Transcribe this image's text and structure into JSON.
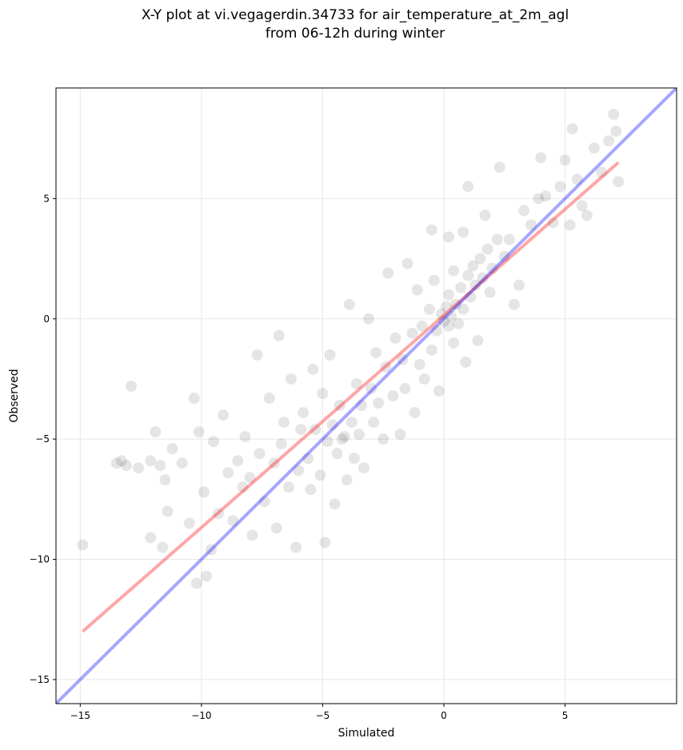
{
  "chart_data": {
    "type": "scatter",
    "title": "X-Y plot at vi.vegagerdin.34733 for air_temperature_at_2m_agl",
    "subtitle": "from 06-12h during winter",
    "x_label": "Simulated",
    "y_label": "Observed",
    "xlim": [
      -16,
      9.6
    ],
    "ylim": [
      -16,
      9.6
    ],
    "xticks": [
      {
        "value": -15,
        "label": "−15"
      },
      {
        "value": -10,
        "label": "−10"
      },
      {
        "value": -5,
        "label": "−5"
      },
      0,
      5
    ],
    "yticks": [
      {
        "value": -15,
        "label": "−15"
      },
      {
        "value": -10,
        "label": "−10"
      },
      {
        "value": -5,
        "label": "−5"
      },
      0,
      5
    ],
    "grid": true,
    "series": [
      {
        "mode": "markers",
        "color": "#000000",
        "alpha": 0.1,
        "x": [
          -14.9,
          -13.5,
          -13.3,
          -13.1,
          -12.9,
          -12.6,
          -12.1,
          -11.9,
          -11.7,
          -11.5,
          -12.1,
          -11.6,
          -11.4,
          -11.2,
          -10.8,
          -10.5,
          -10.3,
          -10.1,
          -10.2,
          -9.9,
          -9.8,
          -9.6,
          -9.5,
          -9.3,
          -9.1,
          -8.9,
          -8.7,
          -8.5,
          -8.3,
          -8.2,
          -8.0,
          -7.9,
          -7.7,
          -7.6,
          -7.4,
          -7.2,
          -7.0,
          -6.9,
          -6.8,
          -6.7,
          -6.6,
          -6.4,
          -6.3,
          -6.1,
          -6.0,
          -5.9,
          -5.8,
          -5.6,
          -5.5,
          -5.4,
          -5.3,
          -5.1,
          -5.0,
          -4.9,
          -4.8,
          -4.7,
          -4.6,
          -4.5,
          -4.4,
          -4.3,
          -4.2,
          -4.1,
          -4.0,
          -3.9,
          -3.8,
          -3.7,
          -3.6,
          -3.5,
          -3.4,
          -3.3,
          -3.1,
          -3.0,
          -2.9,
          -2.8,
          -2.7,
          -2.5,
          -2.4,
          -2.3,
          -2.1,
          -2.0,
          -1.8,
          -1.7,
          -1.6,
          -1.5,
          -1.3,
          -1.2,
          -1.1,
          -1.0,
          -0.9,
          -0.8,
          -0.6,
          -0.5,
          -0.4,
          -0.3,
          -0.2,
          -0.1,
          0.0,
          0.1,
          0.2,
          0.2,
          0.3,
          0.4,
          0.4,
          0.5,
          0.6,
          0.7,
          0.8,
          0.8,
          0.9,
          1.0,
          1.1,
          1.2,
          1.3,
          1.4,
          1.5,
          1.6,
          1.7,
          1.8,
          1.9,
          2.0,
          2.2,
          2.3,
          2.5,
          2.7,
          2.9,
          3.1,
          3.3,
          3.6,
          4.0,
          4.2,
          4.5,
          4.8,
          5.0,
          5.2,
          5.5,
          5.7,
          5.9,
          6.2,
          6.5,
          6.8,
          7.0,
          7.1,
          7.2,
          5.3,
          3.9,
          0.2,
          -0.5,
          1.0
        ],
        "values": [
          -9.4,
          -6.0,
          -5.9,
          -6.1,
          -2.8,
          -6.2,
          -5.9,
          -4.7,
          -6.1,
          -6.7,
          -9.1,
          -9.5,
          -8.0,
          -5.4,
          -6.0,
          -8.5,
          -3.3,
          -4.7,
          -11.0,
          -7.2,
          -10.7,
          -9.6,
          -5.1,
          -8.1,
          -4.0,
          -6.4,
          -8.4,
          -5.9,
          -7.0,
          -4.9,
          -6.6,
          -9.0,
          -1.5,
          -5.6,
          -7.6,
          -3.3,
          -6.0,
          -8.7,
          -0.7,
          -5.2,
          -4.3,
          -7.0,
          -2.5,
          -9.5,
          -6.3,
          -4.6,
          -3.9,
          -5.8,
          -7.1,
          -2.1,
          -4.6,
          -6.5,
          -3.1,
          -9.3,
          -5.1,
          -1.5,
          -4.4,
          -7.7,
          -5.6,
          -3.6,
          -5.0,
          -4.9,
          -6.7,
          0.6,
          -4.3,
          -5.8,
          -2.7,
          -4.8,
          -3.6,
          -6.2,
          0.0,
          -2.9,
          -4.3,
          -1.4,
          -3.5,
          -5.0,
          -2.0,
          1.9,
          -3.2,
          -0.8,
          -4.8,
          -1.7,
          -2.9,
          2.3,
          -0.6,
          -3.9,
          1.2,
          -1.9,
          -0.3,
          -2.5,
          0.4,
          -1.3,
          1.6,
          -0.5,
          -3.0,
          0.2,
          -0.1,
          0.5,
          -0.3,
          1.0,
          0.1,
          -1.0,
          2.0,
          0.6,
          -0.2,
          1.3,
          3.6,
          0.4,
          -1.8,
          1.8,
          0.9,
          2.2,
          1.4,
          -0.9,
          2.5,
          1.7,
          4.3,
          2.9,
          1.1,
          2.1,
          3.3,
          6.3,
          2.6,
          3.3,
          0.6,
          1.4,
          4.5,
          3.9,
          6.7,
          5.1,
          4.0,
          5.5,
          6.6,
          3.9,
          5.8,
          4.7,
          4.3,
          7.1,
          6.1,
          7.4,
          8.5,
          7.8,
          5.7,
          7.9,
          5.0,
          3.4,
          3.7,
          5.5
        ]
      },
      {
        "mode": "line",
        "color": "#ff0000",
        "alpha": 0.35,
        "x": [
          -14.9,
          7.2
        ],
        "values": [
          -13.0,
          6.5
        ]
      },
      {
        "mode": "line",
        "color": "#0000ff",
        "alpha": 0.35,
        "x": [
          -16,
          9.6
        ],
        "values": [
          -16,
          9.6
        ]
      }
    ]
  }
}
